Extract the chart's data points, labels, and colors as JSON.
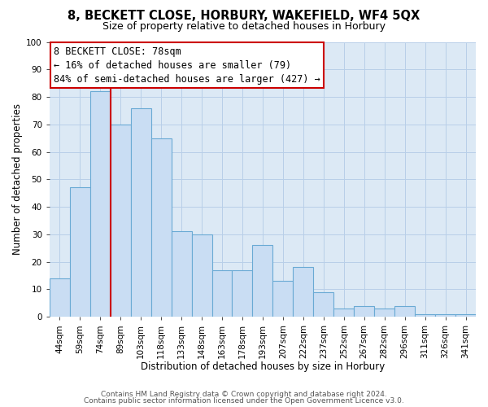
{
  "title": "8, BECKETT CLOSE, HORBURY, WAKEFIELD, WF4 5QX",
  "subtitle": "Size of property relative to detached houses in Horbury",
  "xlabel": "Distribution of detached houses by size in Horbury",
  "ylabel": "Number of detached properties",
  "categories": [
    "44sqm",
    "59sqm",
    "74sqm",
    "89sqm",
    "103sqm",
    "118sqm",
    "133sqm",
    "148sqm",
    "163sqm",
    "178sqm",
    "193sqm",
    "207sqm",
    "222sqm",
    "237sqm",
    "252sqm",
    "267sqm",
    "282sqm",
    "296sqm",
    "311sqm",
    "326sqm",
    "341sqm"
  ],
  "values": [
    14,
    47,
    82,
    70,
    76,
    65,
    31,
    30,
    17,
    17,
    26,
    13,
    18,
    9,
    3,
    4,
    3,
    4,
    1,
    1,
    1
  ],
  "bar_color": "#c9ddf3",
  "bar_edge_color": "#6aaad4",
  "bar_width": 1.0,
  "vline_x_index": 2,
  "vline_color": "#cc0000",
  "annotation_title": "8 BECKETT CLOSE: 78sqm",
  "annotation_line1": "← 16% of detached houses are smaller (79)",
  "annotation_line2": "84% of semi-detached houses are larger (427) →",
  "annotation_box_color": "#ffffff",
  "annotation_box_edge": "#cc0000",
  "ylim": [
    0,
    100
  ],
  "yticks": [
    0,
    10,
    20,
    30,
    40,
    50,
    60,
    70,
    80,
    90,
    100
  ],
  "fig_bg_color": "#ffffff",
  "plot_bg_color": "#dce9f5",
  "grid_color": "#b8cfe8",
  "footer1": "Contains HM Land Registry data © Crown copyright and database right 2024.",
  "footer2": "Contains public sector information licensed under the Open Government Licence v3.0.",
  "title_fontsize": 10.5,
  "subtitle_fontsize": 9,
  "axis_label_fontsize": 8.5,
  "tick_fontsize": 7.5,
  "annotation_fontsize": 8.5,
  "footer_fontsize": 6.5
}
